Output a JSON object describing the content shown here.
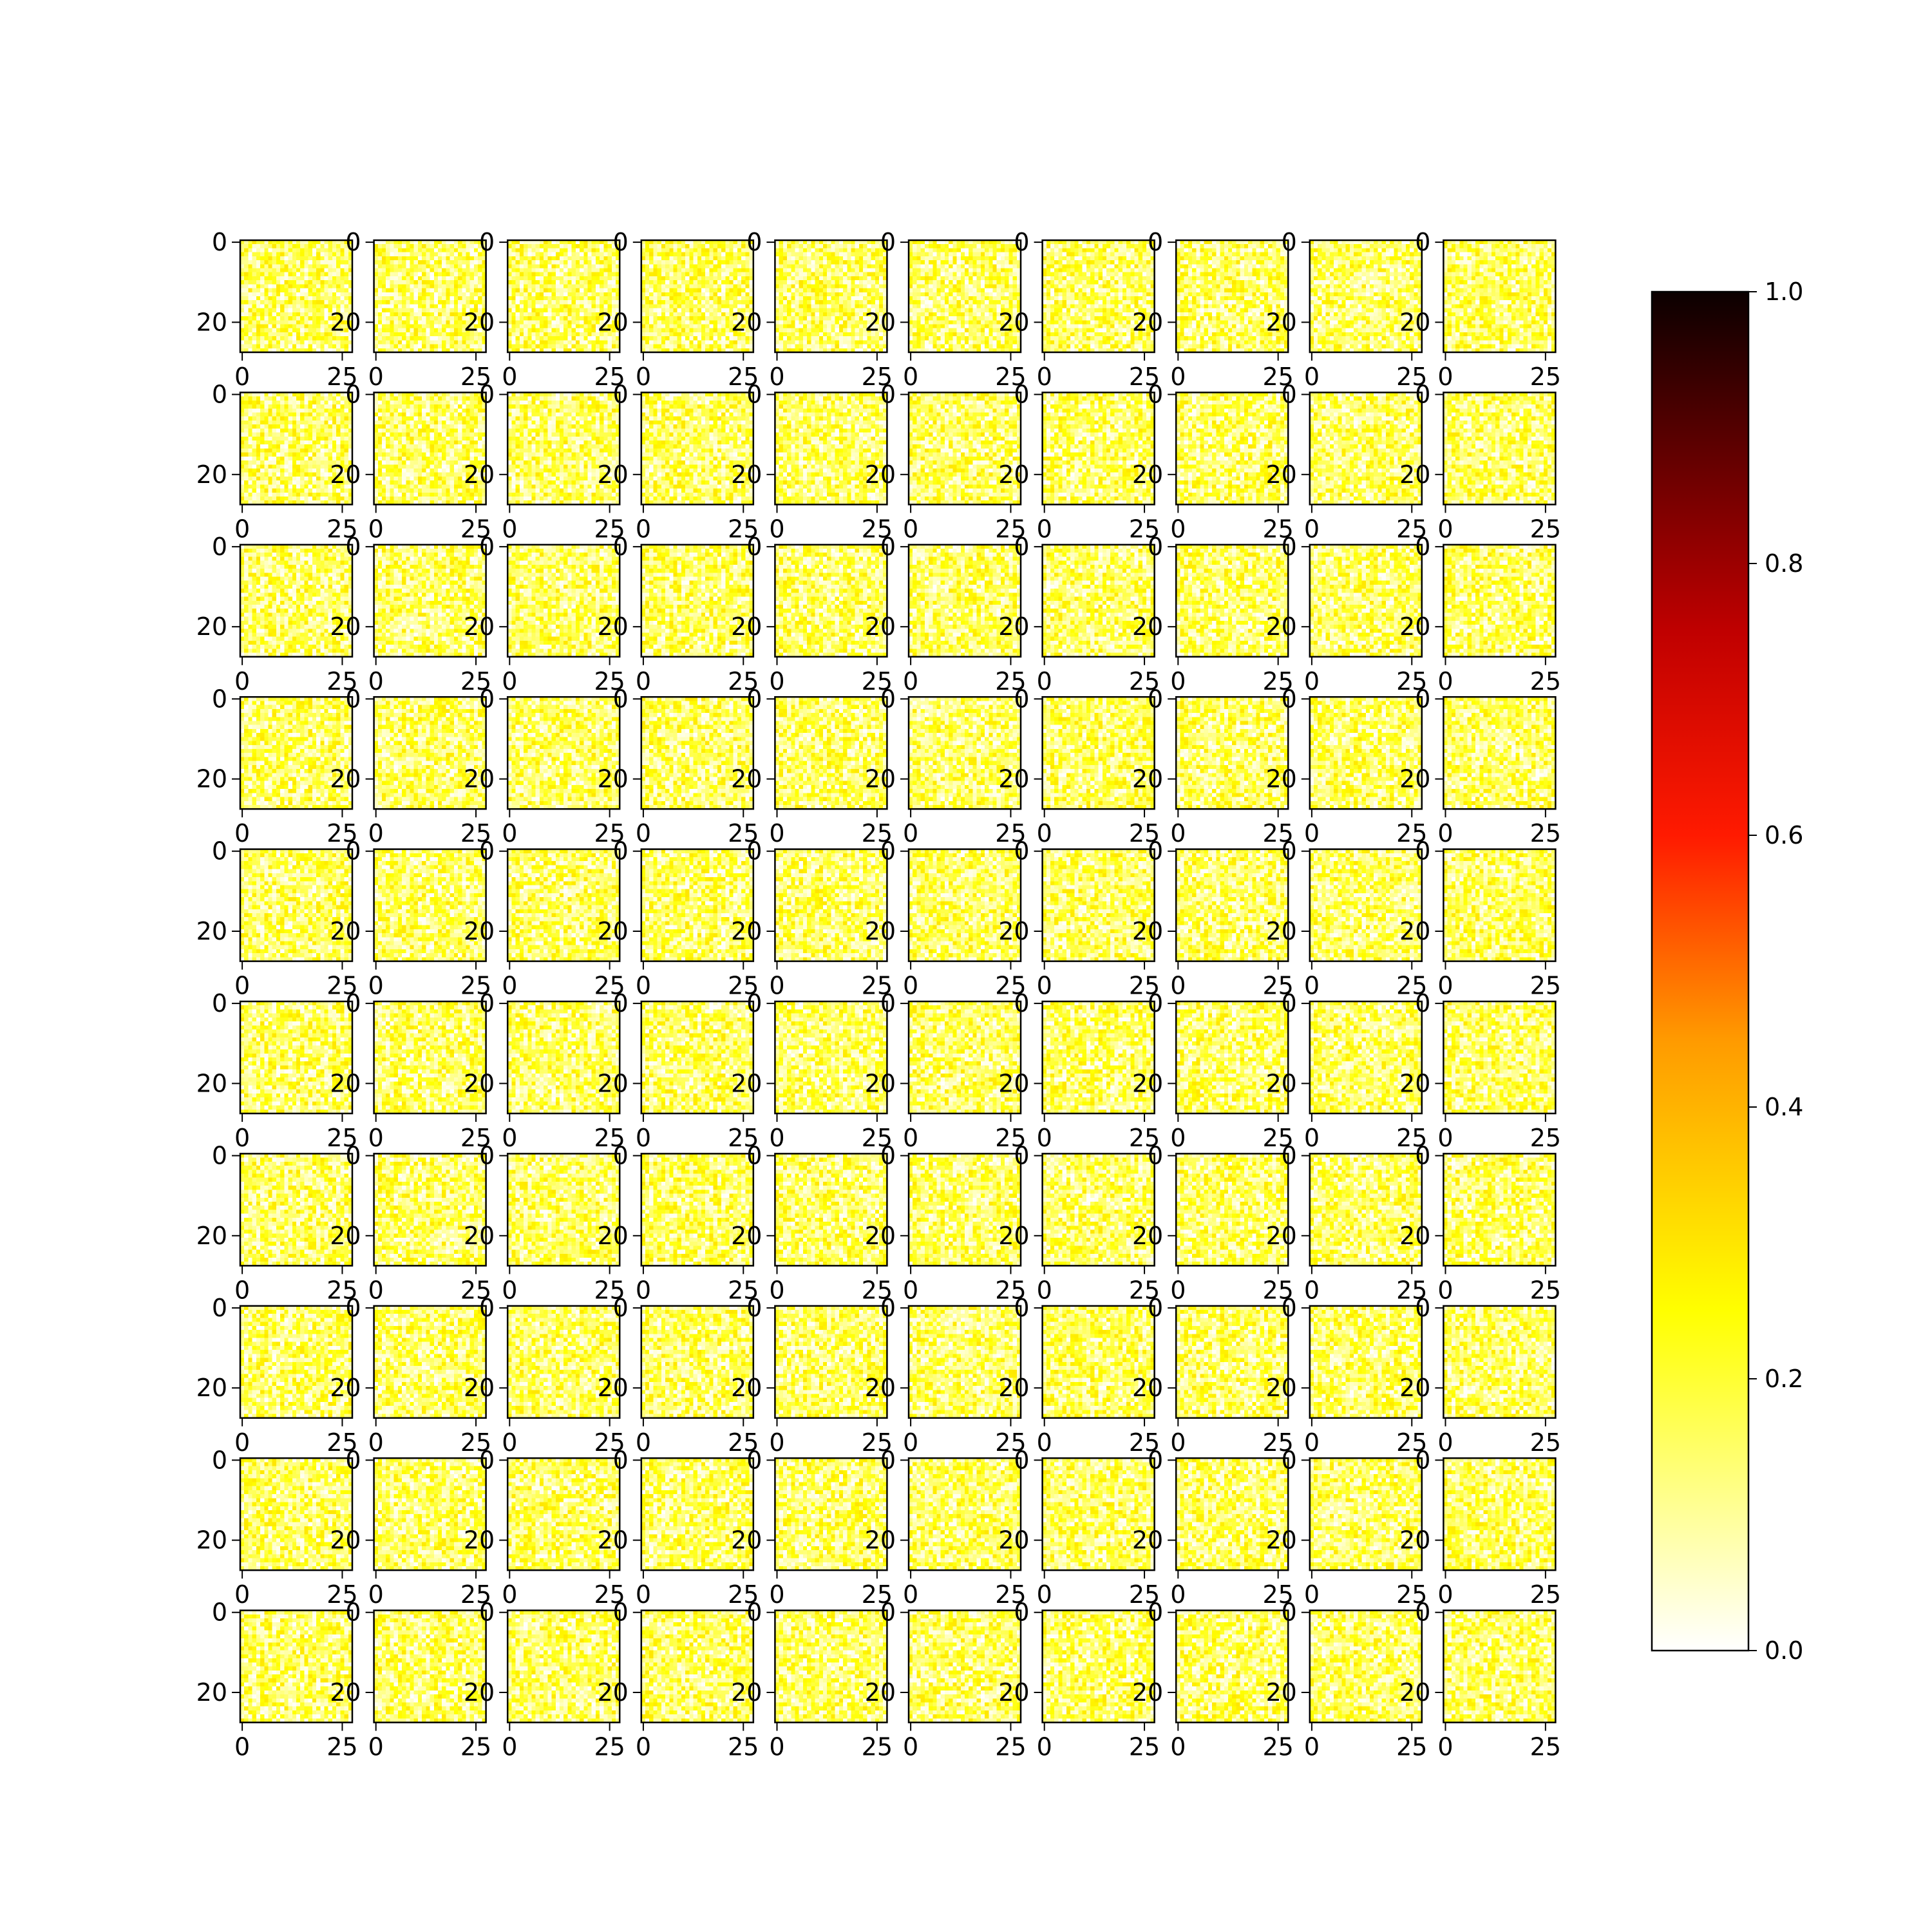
{
  "chart_data": {
    "type": "heatmap",
    "layout": {
      "rows": 10,
      "columns": 10
    },
    "panel": {
      "pixels": [
        28,
        28
      ],
      "x_ticks": [
        0,
        25
      ],
      "x_tick_labels": [
        "0",
        "25"
      ],
      "y_ticks": [
        0,
        20
      ],
      "y_tick_labels": [
        "0",
        "20"
      ],
      "value_range_observed": [
        0.0,
        0.3
      ]
    },
    "colormap": {
      "name": "hot_r",
      "vmin": 0.0,
      "vmax": 1.0,
      "stops": [
        {
          "value": 0.0,
          "color": "#ffffff"
        },
        {
          "value": 0.25,
          "color": "#ffff00"
        },
        {
          "value": 0.45,
          "color": "#ff9a00"
        },
        {
          "value": 0.6,
          "color": "#ff1a00"
        },
        {
          "value": 0.75,
          "color": "#c00000"
        },
        {
          "value": 1.0,
          "color": "#0b0000"
        }
      ]
    },
    "colorbar": {
      "ticks": [
        0.0,
        0.2,
        0.4,
        0.6,
        0.8,
        1.0
      ],
      "tick_labels": [
        "0.0",
        "0.2",
        "0.4",
        "0.6",
        "0.8",
        "1.0"
      ]
    },
    "title": "",
    "xlabel": "",
    "ylabel": "",
    "grid": false
  }
}
